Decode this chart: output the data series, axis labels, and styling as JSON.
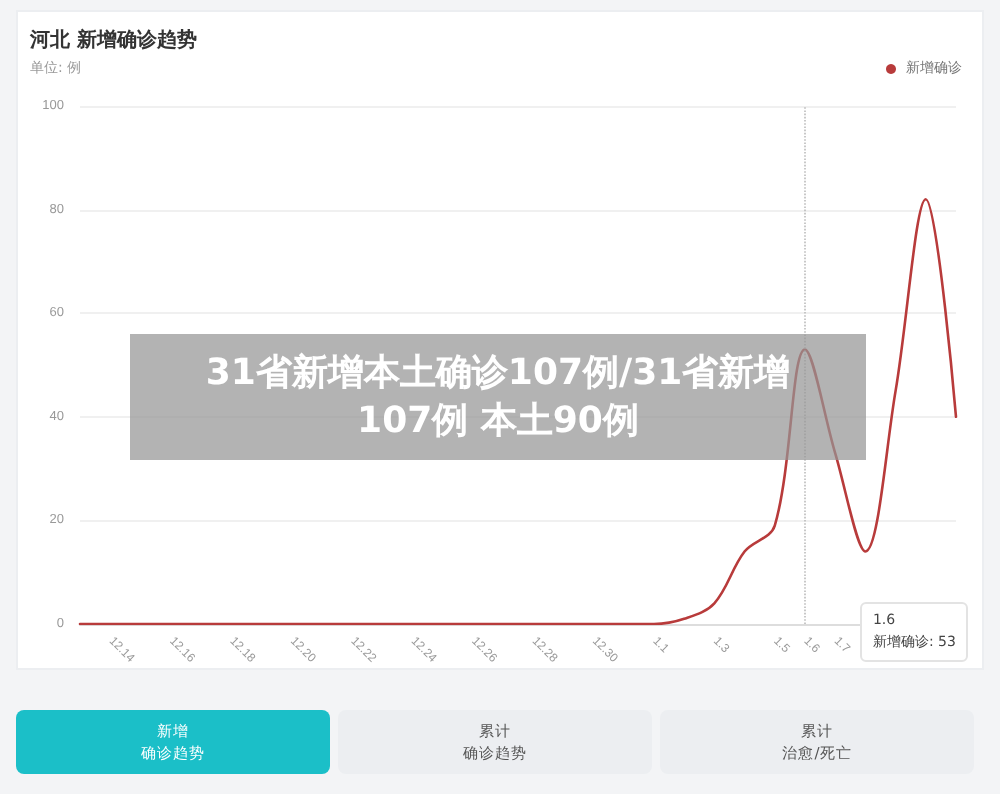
{
  "chart_data": {
    "type": "line",
    "title": "河北 新增确诊趋势",
    "ylabel": "单位: 例",
    "categories": [
      null,
      "12.14",
      null,
      "12.16",
      null,
      "12.18",
      null,
      "12.20",
      null,
      "12.22",
      null,
      "12.24",
      null,
      "12.26",
      null,
      "12.28",
      null,
      "12.30",
      null,
      "1.1",
      null,
      "1.3",
      null,
      "1.5",
      "1.6",
      "1.7",
      null,
      null,
      null,
      null
    ],
    "series": [
      {
        "name": "新增确诊",
        "color": "#b83b3b",
        "values": [
          0,
          0,
          0,
          0,
          0,
          0,
          0,
          0,
          0,
          0,
          0,
          0,
          0,
          0,
          0,
          0,
          0,
          0,
          0,
          0,
          1,
          4,
          14,
          19,
          53,
          33,
          14,
          45,
          82,
          40
        ]
      }
    ],
    "ylim": [
      0,
      100
    ],
    "yticks": [
      0,
      20,
      40,
      60,
      80,
      100
    ],
    "grid": "y",
    "legend": "top right",
    "marker": "none",
    "line_style": "solid",
    "ref_lines": [
      {
        "axis": "x",
        "value": "1.6",
        "color": "#bbbbbb",
        "line_style": "dotted"
      }
    ],
    "annotations": [
      "31省新增本土确诊107例/31省新增107例 本土90例",
      "新增确诊: 53",
      "新增",
      "确诊趋势",
      "累计",
      "确诊趋势",
      "累计",
      "治愈/死亡"
    ]
  }
}
